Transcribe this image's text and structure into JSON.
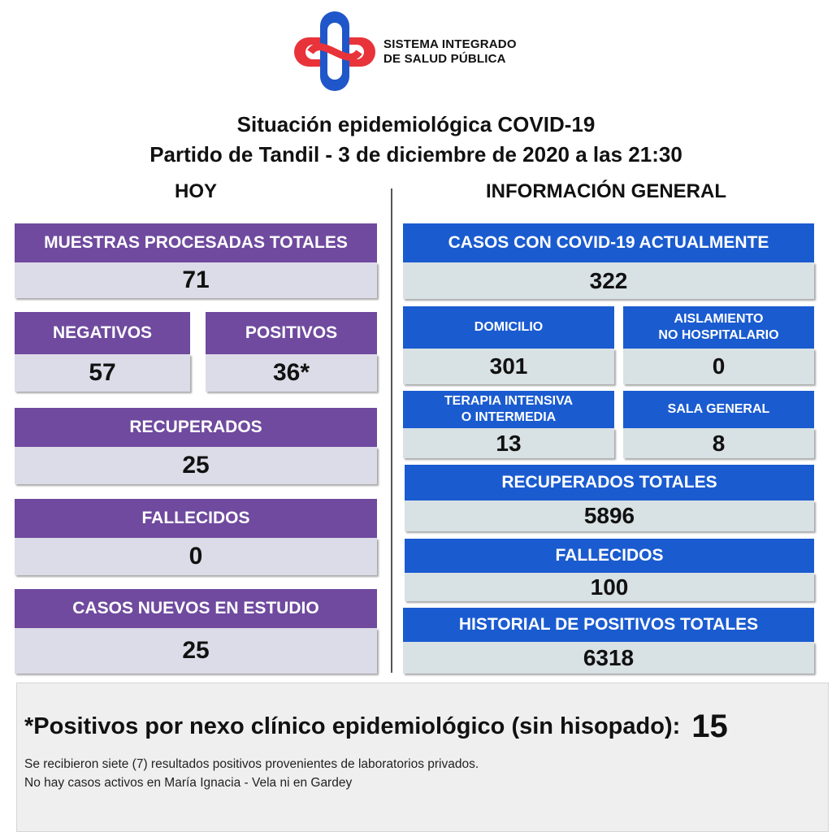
{
  "header": {
    "org_line1": "SISTEMA INTEGRADO",
    "org_line2": "DE SALUD PÚBLICA",
    "title": "Situación epidemiológica COVID-19",
    "subtitle": "Partido de Tandil - 3 de diciembre de 2020 a las 21:30"
  },
  "colors": {
    "purple_header": "#6f4a9e",
    "purple_value": "#dcdbe8",
    "blue_header": "#1a5bd0",
    "blue_value": "#d8e1e4",
    "logo_red": "#e8333a",
    "logo_blue": "#1f56c9"
  },
  "today": {
    "heading": "HOY",
    "muestras": {
      "label": "MUESTRAS PROCESADAS TOTALES",
      "value": "71"
    },
    "negativos": {
      "label": "NEGATIVOS",
      "value": "57"
    },
    "positivos": {
      "label": "POSITIVOS",
      "value": "36*"
    },
    "recuperados": {
      "label": "RECUPERADOS",
      "value": "25"
    },
    "fallecidos": {
      "label": "FALLECIDOS",
      "value": "0"
    },
    "casos_nuevos": {
      "label": "CASOS NUEVOS EN ESTUDIO",
      "value": "25"
    }
  },
  "general": {
    "heading": "INFORMACIÓN GENERAL",
    "casos_actuales": {
      "label": "CASOS CON COVID-19 ACTUALMENTE",
      "value": "322"
    },
    "domicilio": {
      "label": "DOMICILIO",
      "value": "301"
    },
    "aislamiento": {
      "label_line1": "AISLAMIENTO",
      "label_line2": "NO HOSPITALARIO",
      "value": "0"
    },
    "terapia": {
      "label_line1": "TERAPIA INTENSIVA",
      "label_line2": "O INTERMEDIA",
      "value": "13"
    },
    "sala_general": {
      "label": "SALA GENERAL",
      "value": "8"
    },
    "recuperados_totales": {
      "label": "RECUPERADOS TOTALES",
      "value": "5896"
    },
    "fallecidos": {
      "label": "FALLECIDOS",
      "value": "100"
    },
    "historial": {
      "label": "HISTORIAL DE POSITIVOS TOTALES",
      "value": "6318"
    }
  },
  "footer": {
    "footnote_label": "*Positivos por nexo clínico epidemiológico (sin hisopado):",
    "footnote_value": "15",
    "note1": "Se recibieron siete (7) resultados positivos provenientes de laboratorios privados.",
    "note2": "No hay casos activos en María Ignacia - Vela ni en Gardey"
  },
  "icons": {
    "logo": "health-system-logo-icon"
  }
}
